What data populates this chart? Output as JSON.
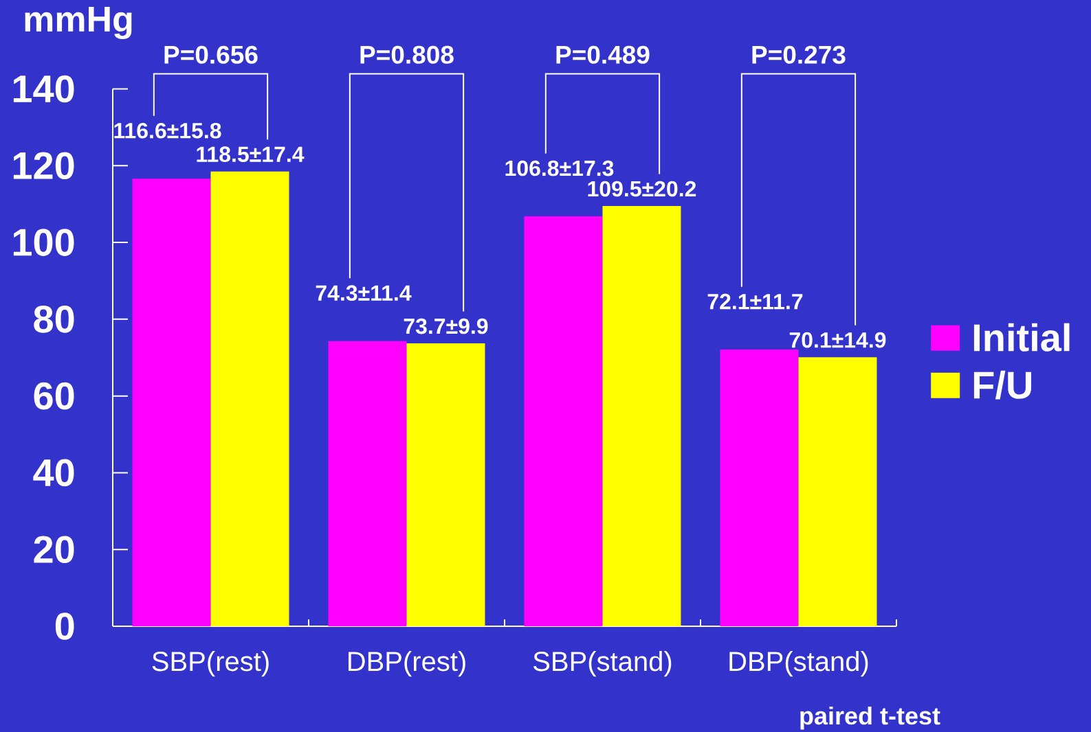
{
  "chart_data": {
    "type": "bar",
    "ylabel": "mmHg",
    "categories": [
      "SBP(rest)",
      "DBP(rest)",
      "SBP(stand)",
      "DBP(stand)"
    ],
    "series": [
      {
        "name": "Initial",
        "color": "#ff00ff",
        "values": [
          116.6,
          74.3,
          106.8,
          72.1
        ],
        "value_labels": [
          "116.6±15.8",
          "74.3±11.4",
          "106.8±17.3",
          "72.1±11.7"
        ]
      },
      {
        "name": "F/U",
        "color": "#ffff00",
        "values": [
          118.5,
          73.7,
          109.5,
          70.1
        ],
        "value_labels": [
          "118.5±17.4",
          "73.7±9.9",
          "109.5±20.2",
          "70.1±14.9"
        ]
      }
    ],
    "ylim": [
      0,
      140
    ],
    "yticks": [
      0,
      20,
      40,
      60,
      80,
      100,
      120,
      140
    ],
    "legend": "right",
    "annotations": [
      "P=0.656",
      "P=0.808",
      "P=0.489",
      "P=0.273",
      "paired t-test"
    ]
  }
}
